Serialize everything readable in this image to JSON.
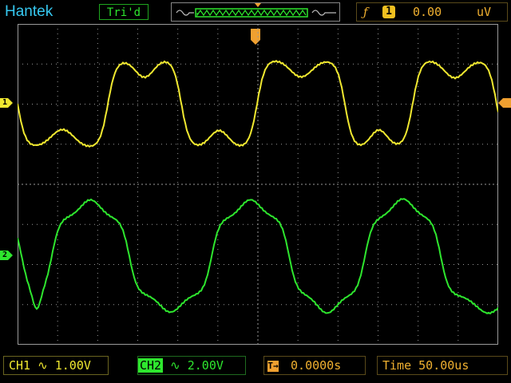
{
  "header": {
    "brand": "Hantek",
    "trigger_status": "Tri'd",
    "trigger_edge_symbol": "ƒ",
    "trigger_source": "1",
    "trigger_level": "0.00",
    "trigger_level_unit": "uV"
  },
  "channels": [
    {
      "id": "1",
      "color": "#f0e830",
      "coupling_symbol": "∿",
      "label": "CH1",
      "scale": "1.00V"
    },
    {
      "id": "2",
      "color": "#2ee62e",
      "coupling_symbol": "∿",
      "label": "CH2",
      "scale": "2.00V"
    }
  ],
  "footer": {
    "trigger_position": "0.0000s",
    "timebase_label": "Time",
    "timebase_value": "50.00us"
  },
  "colors": {
    "accent_trigger": "#f0a030",
    "brand": "#36c8f0",
    "grid": "#9a9a9a",
    "screen_background": "#000000"
  },
  "icons": {
    "trigger_marker": "trigger-t-icon",
    "channel_marker": "channel-arrow-icon"
  }
}
